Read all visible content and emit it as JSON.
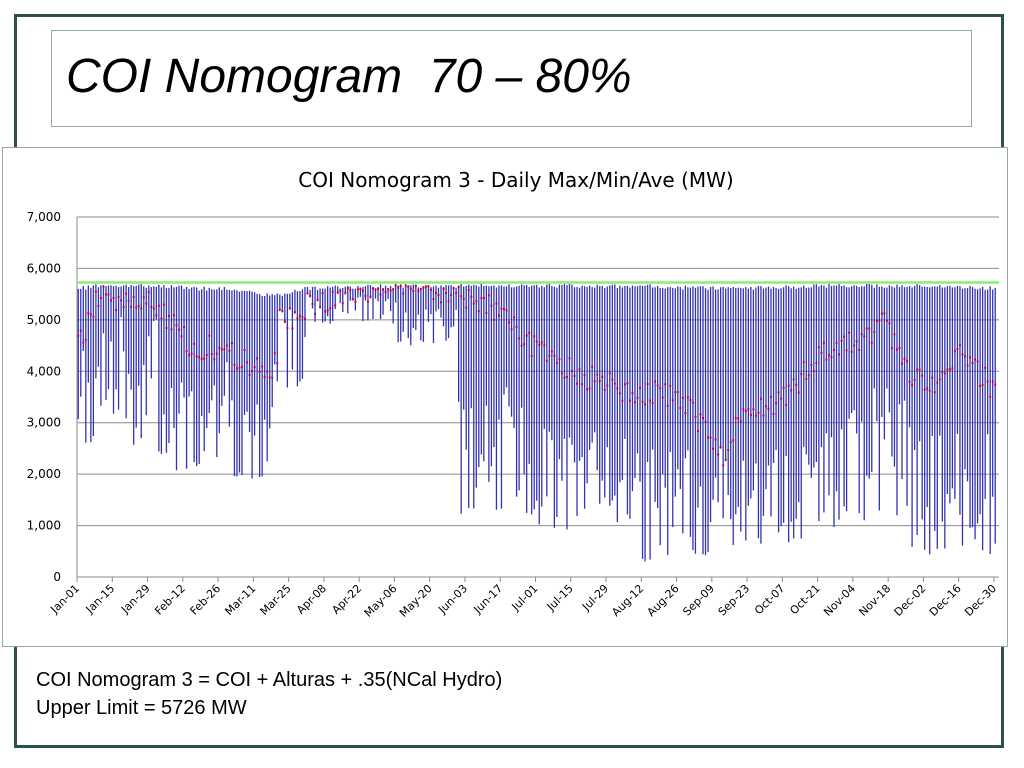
{
  "slide": {
    "title": "COI Nomogram  70 – 80%",
    "notes": [
      "COI Nomogram 3 = COI + Alturas + .35(NCal Hydro)",
      "Upper Limit = 5726 MW"
    ]
  },
  "chart_data": {
    "type": "line",
    "title": "COI Nomogram 3 - Daily Max/Min/Ave (MW)",
    "xlabel": "",
    "ylabel": "",
    "ylim": [
      0,
      7000
    ],
    "yticks": [
      0,
      1000,
      2000,
      3000,
      4000,
      5000,
      6000,
      7000
    ],
    "ytick_labels": [
      "0",
      "1,000",
      "2,000",
      "3,000",
      "4,000",
      "5,000",
      "6,000",
      "7,000"
    ],
    "x_tick_labels": [
      "Jan-01",
      "Jan-15",
      "Jan-29",
      "Feb-12",
      "Feb-26",
      "Mar-11",
      "Mar-25",
      "Apr-08",
      "Apr-22",
      "May-06",
      "May-20",
      "Jun-03",
      "Jun-17",
      "Jul-01",
      "Jul-15",
      "Jul-29",
      "Aug-12",
      "Aug-26",
      "Sep-09",
      "Sep-23",
      "Oct-07",
      "Oct-21",
      "Nov-04",
      "Nov-18",
      "Dec-02",
      "Dec-16",
      "Dec-30"
    ],
    "x_tick_spacing_days": 14,
    "grid": true,
    "legend": "none",
    "upper_limit": 5726,
    "colors": {
      "range": "#3333b0",
      "average": "#cc0033",
      "limit": "#88ee77",
      "grid": "#8c8c8c"
    },
    "series": [
      {
        "kind": "daily-max-min-range",
        "segments": [
          {
            "x": [
              0,
              8
            ],
            "max": [
              5650,
              5700
            ],
            "min": [
              2500,
              4400
            ]
          },
          {
            "x": [
              8,
              21
            ],
            "max": [
              5700,
              5700
            ],
            "min": [
              3000,
              5200
            ]
          },
          {
            "x": [
              21,
              32
            ],
            "max": [
              5700,
              5700
            ],
            "min": [
              2400,
              5300
            ]
          },
          {
            "x": [
              32,
              48
            ],
            "max": [
              5700,
              5650
            ],
            "min": [
              1900,
              4000
            ]
          },
          {
            "x": [
              48,
              60
            ],
            "max": [
              5650,
              5650
            ],
            "min": [
              2300,
              4200
            ]
          },
          {
            "x": [
              60,
              77
            ],
            "max": [
              5650,
              5500
            ],
            "min": [
              1900,
              3500
            ]
          },
          {
            "x": [
              77,
              90
            ],
            "max": [
              5500,
              5650
            ],
            "min": [
              3600,
              5200
            ]
          },
          {
            "x": [
              90,
              125
            ],
            "max": [
              5650,
              5700
            ],
            "min": [
              4900,
              5600
            ]
          },
          {
            "x": [
              125,
              150
            ],
            "max": [
              5700,
              5700
            ],
            "min": [
              4500,
              5400
            ]
          },
          {
            "x": [
              150,
              181
            ],
            "max": [
              5700,
              5700
            ],
            "min": [
              1200,
              3800
            ]
          },
          {
            "x": [
              181,
              220
            ],
            "max": [
              5700,
              5700
            ],
            "min": [
              900,
              3200
            ]
          },
          {
            "x": [
              220,
              255
            ],
            "max": [
              5700,
              5650
            ],
            "min": [
              300,
              2500
            ]
          },
          {
            "x": [
              255,
              300
            ],
            "max": [
              5650,
              5700
            ],
            "min": [
              600,
              2800
            ]
          },
          {
            "x": [
              300,
              330
            ],
            "max": [
              5700,
              5700
            ],
            "min": [
              1000,
              3900
            ]
          },
          {
            "x": [
              330,
              365
            ],
            "max": [
              5700,
              5650
            ],
            "min": [
              400,
              2800
            ]
          }
        ]
      },
      {
        "kind": "daily-average",
        "x": [
          0,
          8,
          15,
          30,
          45,
          60,
          75,
          90,
          105,
          125,
          140,
          150,
          160,
          185,
          200,
          220,
          240,
          255,
          265,
          280,
          295,
          310,
          320,
          330,
          340,
          350,
          365
        ],
        "y": [
          4450,
          5500,
          5400,
          5300,
          4500,
          4400,
          3900,
          5200,
          5500,
          5650,
          5650,
          5500,
          5400,
          4300,
          3900,
          3600,
          3500,
          2300,
          3200,
          3500,
          4300,
          4600,
          4950,
          4000,
          3600,
          4300,
          3600
        ]
      }
    ]
  }
}
